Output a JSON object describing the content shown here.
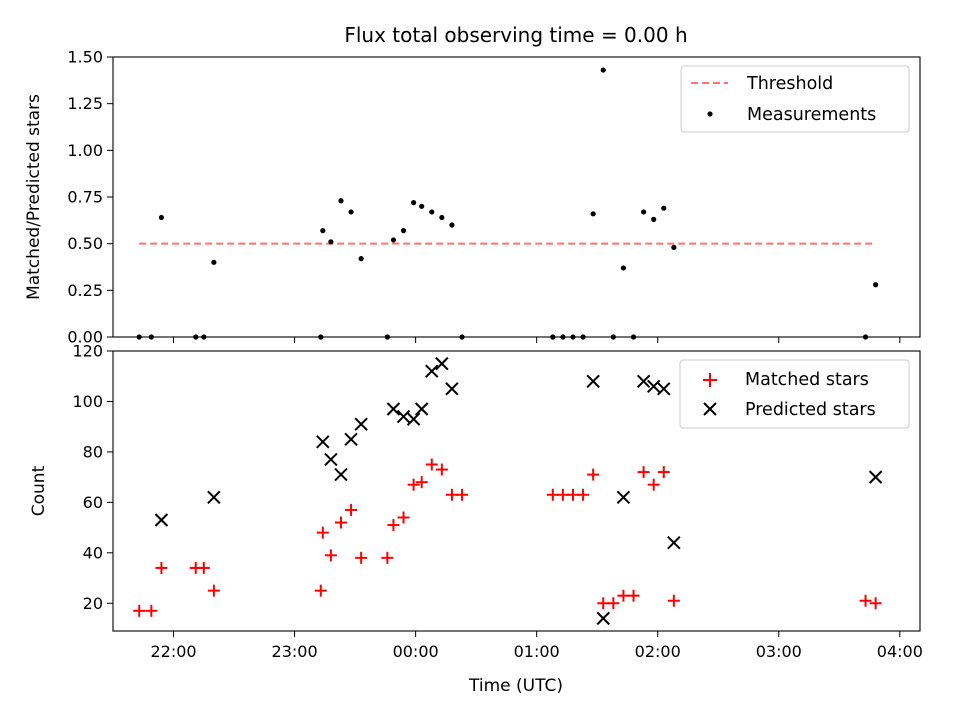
{
  "title": "Flux total observing time = 0.00 h",
  "chart_data": [
    {
      "type": "scatter",
      "panel": "top",
      "ylabel": "Matched/Predicted stars",
      "ylim": [
        0,
        1.5
      ],
      "yticks": [
        0,
        0.25,
        0.5,
        0.75,
        1.0,
        1.25,
        1.5
      ],
      "ytick_labels": [
        "0.00",
        "0.25",
        "0.50",
        "0.75",
        "1.00",
        "1.25",
        "1.50"
      ],
      "legend": {
        "placement": "top-right",
        "threshold_label": "Threshold",
        "measurements_label": "Measurements"
      },
      "threshold": {
        "value": 0.5,
        "x_start": "21:43",
        "x_end": "03:48",
        "color": "#ff7070"
      },
      "series": [
        {
          "name": "Measurements",
          "color": "#000000",
          "points": [
            [
              "21:43",
              0.0
            ],
            [
              "21:49",
              0.0
            ],
            [
              "21:54",
              0.64
            ],
            [
              "22:11",
              0.0
            ],
            [
              "22:15",
              0.0
            ],
            [
              "22:20",
              0.4
            ],
            [
              "23:13",
              0.0
            ],
            [
              "23:14",
              0.57
            ],
            [
              "23:18",
              0.51
            ],
            [
              "23:23",
              0.73
            ],
            [
              "23:28",
              0.67
            ],
            [
              "23:33",
              0.42
            ],
            [
              "23:46",
              0.0
            ],
            [
              "23:49",
              0.52
            ],
            [
              "23:54",
              0.57
            ],
            [
              "23:59",
              0.72
            ],
            [
              "00:03",
              0.7
            ],
            [
              "00:08",
              0.67
            ],
            [
              "00:13",
              0.64
            ],
            [
              "00:18",
              0.6
            ],
            [
              "00:23",
              0.0
            ],
            [
              "01:08",
              0.0
            ],
            [
              "01:13",
              0.0
            ],
            [
              "01:18",
              0.0
            ],
            [
              "01:23",
              0.0
            ],
            [
              "01:28",
              0.66
            ],
            [
              "01:33",
              1.43
            ],
            [
              "01:38",
              0.0
            ],
            [
              "01:43",
              0.37
            ],
            [
              "01:48",
              0.0
            ],
            [
              "01:53",
              0.67
            ],
            [
              "01:58",
              0.63
            ],
            [
              "02:03",
              0.69
            ],
            [
              "02:08",
              0.48
            ],
            [
              "03:43",
              0.0
            ],
            [
              "03:48",
              0.28
            ]
          ]
        }
      ]
    },
    {
      "type": "scatter",
      "panel": "bottom",
      "xlabel": "Time (UTC)",
      "ylabel": "Count",
      "ylim": [
        9,
        120
      ],
      "yticks": [
        20,
        40,
        60,
        80,
        100,
        120
      ],
      "ytick_labels": [
        "20",
        "40",
        "60",
        "80",
        "100",
        "120"
      ],
      "xlim": [
        "21:30",
        "04:10"
      ],
      "xticks": [
        "22:00",
        "23:00",
        "00:00",
        "01:00",
        "02:00",
        "03:00",
        "04:00"
      ],
      "legend": {
        "placement": "top-right"
      },
      "series": [
        {
          "name": "Matched stars",
          "marker": "+",
          "color": "#ff0000",
          "points": [
            [
              "21:43",
              17
            ],
            [
              "21:49",
              17
            ],
            [
              "21:54",
              34
            ],
            [
              "22:11",
              34
            ],
            [
              "22:15",
              34
            ],
            [
              "22:20",
              25
            ],
            [
              "23:13",
              25
            ],
            [
              "23:14",
              48
            ],
            [
              "23:18",
              39
            ],
            [
              "23:23",
              52
            ],
            [
              "23:28",
              57
            ],
            [
              "23:33",
              38
            ],
            [
              "23:46",
              38
            ],
            [
              "23:49",
              51
            ],
            [
              "23:54",
              54
            ],
            [
              "23:59",
              67
            ],
            [
              "00:03",
              68
            ],
            [
              "00:08",
              75
            ],
            [
              "00:13",
              73
            ],
            [
              "00:18",
              63
            ],
            [
              "00:23",
              63
            ],
            [
              "01:08",
              63
            ],
            [
              "01:13",
              63
            ],
            [
              "01:18",
              63
            ],
            [
              "01:23",
              63
            ],
            [
              "01:28",
              71
            ],
            [
              "01:33",
              20
            ],
            [
              "01:38",
              20
            ],
            [
              "01:43",
              23
            ],
            [
              "01:48",
              23
            ],
            [
              "01:53",
              72
            ],
            [
              "01:58",
              67
            ],
            [
              "02:03",
              72
            ],
            [
              "02:08",
              21
            ],
            [
              "03:43",
              21
            ],
            [
              "03:48",
              20
            ]
          ]
        },
        {
          "name": "Predicted stars",
          "marker": "x",
          "color": "#000000",
          "points": [
            [
              "21:54",
              53
            ],
            [
              "22:20",
              62
            ],
            [
              "23:14",
              84
            ],
            [
              "23:18",
              77
            ],
            [
              "23:23",
              71
            ],
            [
              "23:28",
              85
            ],
            [
              "23:33",
              91
            ],
            [
              "23:49",
              97
            ],
            [
              "23:54",
              94
            ],
            [
              "23:59",
              93
            ],
            [
              "00:03",
              97
            ],
            [
              "00:08",
              112
            ],
            [
              "00:13",
              115
            ],
            [
              "00:18",
              105
            ],
            [
              "01:28",
              108
            ],
            [
              "01:33",
              14
            ],
            [
              "01:43",
              62
            ],
            [
              "01:53",
              108
            ],
            [
              "01:58",
              106
            ],
            [
              "02:03",
              105
            ],
            [
              "02:08",
              44
            ],
            [
              "03:48",
              70
            ]
          ]
        }
      ]
    }
  ]
}
